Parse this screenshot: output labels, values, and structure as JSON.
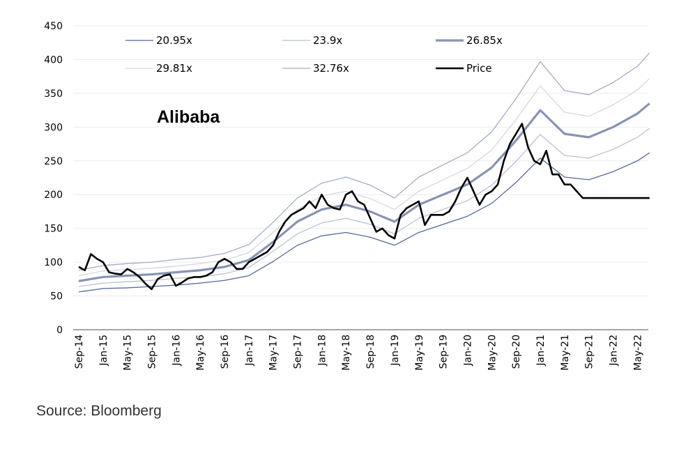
{
  "chart_data": {
    "type": "line",
    "title": "Alibaba",
    "xlabel": "",
    "ylabel": "",
    "ylim": [
      0,
      450
    ],
    "yticks": [
      0,
      50,
      100,
      150,
      200,
      250,
      300,
      350,
      400,
      450
    ],
    "xtick_labels": [
      "Sep-14",
      "Jan-15",
      "May-15",
      "Sep-15",
      "Jan-16",
      "May-16",
      "Sep-16",
      "Jan-17",
      "May-17",
      "Sep-17",
      "Jan-18",
      "May-18",
      "Sep-18",
      "Jan-19",
      "May-19",
      "Sep-19",
      "Jan-20",
      "May-20",
      "Sep-20",
      "Jan-21",
      "May-21",
      "Sep-21",
      "Jan-22",
      "May-22"
    ],
    "x_start": "Sep-14",
    "x_step_months": 1,
    "grid": true,
    "legend_position": "top",
    "band_x_months": [
      0,
      4,
      8,
      12,
      16,
      20,
      24,
      28,
      32,
      36,
      40,
      44,
      48,
      52,
      56,
      60,
      64,
      68,
      72,
      76,
      80,
      84,
      88,
      92,
      94
    ],
    "series": [
      {
        "name": "20.95x",
        "color": "#56689a",
        "width": 1.3,
        "values": [
          56,
          61,
          62,
          64,
          66,
          69,
          73,
          80,
          101,
          125,
          139,
          144,
          137,
          125,
          144,
          156,
          168,
          187,
          218,
          254,
          226,
          222,
          234,
          250,
          262
        ]
      },
      {
        "name": "23.9x",
        "color": "#b9c0d2",
        "width": 1.3,
        "values": [
          64,
          69,
          71,
          73,
          76,
          78,
          83,
          92,
          116,
          142,
          158,
          165,
          156,
          142,
          165,
          178,
          191,
          214,
          249,
          289,
          258,
          254,
          267,
          285,
          298
        ]
      },
      {
        "name": "26.85x",
        "color": "#8893b3",
        "width": 3.2,
        "values": [
          72,
          78,
          80,
          82,
          85,
          88,
          93,
          103,
          130,
          160,
          178,
          185,
          175,
          160,
          185,
          200,
          215,
          240,
          280,
          325,
          290,
          285,
          300,
          320,
          335
        ]
      },
      {
        "name": "29.81x",
        "color": "#d3d7e0",
        "width": 1.3,
        "values": [
          80,
          87,
          89,
          91,
          94,
          98,
          103,
          114,
          144,
          178,
          198,
          205,
          194,
          178,
          205,
          222,
          239,
          266,
          311,
          361,
          322,
          316,
          333,
          355,
          372
        ]
      },
      {
        "name": "32.76x",
        "color": "#a3abc3",
        "width": 1.3,
        "values": [
          88,
          95,
          98,
          100,
          104,
          107,
          113,
          126,
          159,
          195,
          217,
          226,
          214,
          195,
          226,
          244,
          262,
          293,
          342,
          397,
          354,
          348,
          366,
          390,
          410
        ]
      },
      {
        "name": "Price",
        "color": "#000000",
        "width": 2.6,
        "monthly": true,
        "values": [
          93,
          88,
          112,
          105,
          100,
          85,
          83,
          82,
          90,
          85,
          78,
          68,
          60,
          75,
          80,
          82,
          65,
          70,
          76,
          78,
          78,
          80,
          85,
          100,
          105,
          100,
          90,
          90,
          100,
          105,
          110,
          115,
          125,
          145,
          160,
          170,
          175,
          180,
          190,
          180,
          200,
          185,
          180,
          178,
          200,
          205,
          190,
          185,
          165,
          145,
          150,
          140,
          135,
          170,
          180,
          185,
          190,
          155,
          170,
          170,
          170,
          175,
          190,
          210,
          225,
          205,
          185,
          200,
          205,
          215,
          250,
          275,
          290,
          305,
          270,
          250,
          245,
          265,
          230,
          230,
          215,
          215,
          205,
          195,
          195,
          195,
          195,
          195,
          195,
          195,
          195,
          195,
          195,
          195,
          195
        ]
      }
    ]
  },
  "source": "Source: Bloomberg"
}
